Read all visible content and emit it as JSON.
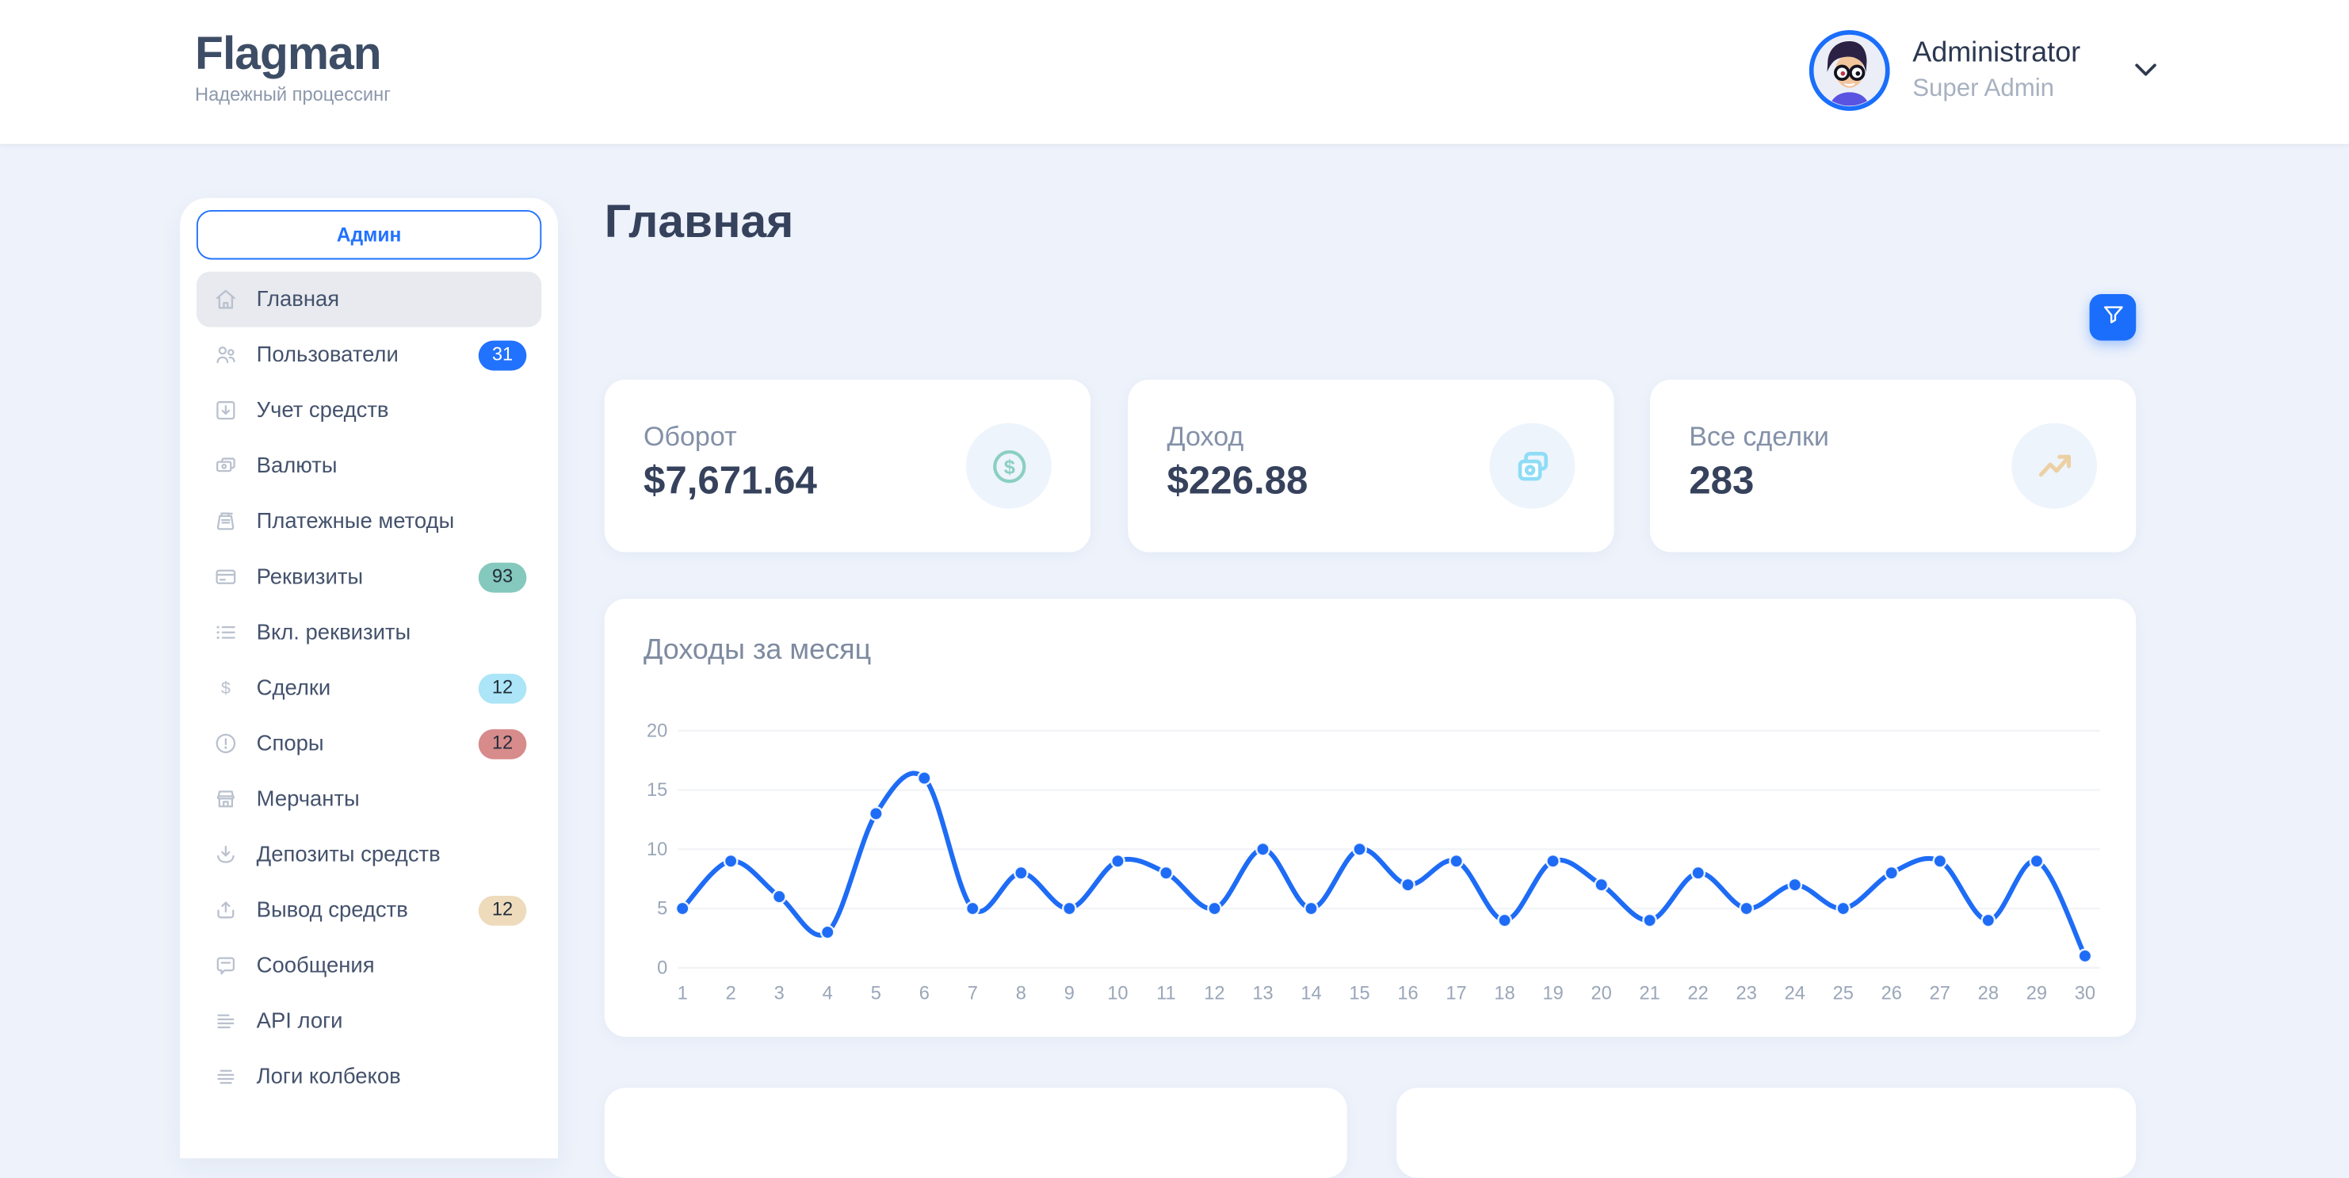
{
  "header": {
    "brand": "Flagman",
    "tagline": "Надежный процессинг",
    "user_name": "Administrator",
    "user_role": "Super Admin"
  },
  "sidebar": {
    "section_button": "Админ",
    "items": [
      {
        "label": "Главная",
        "icon": "home-icon",
        "active": true
      },
      {
        "label": "Пользователи",
        "icon": "users-icon",
        "badge": {
          "text": "31",
          "style": "blue"
        }
      },
      {
        "label": "Учет средств",
        "icon": "funds-account-icon"
      },
      {
        "label": "Валюты",
        "icon": "currency-icon"
      },
      {
        "label": "Платежные методы",
        "icon": "payment-methods-icon"
      },
      {
        "label": "Реквизиты",
        "icon": "requisites-icon",
        "badge": {
          "text": "93",
          "style": "teal"
        }
      },
      {
        "label": "Вкл. реквизиты",
        "icon": "enabled-requisites-icon"
      },
      {
        "label": "Сделки",
        "icon": "deals-icon",
        "badge": {
          "text": "12",
          "style": "cyan"
        }
      },
      {
        "label": "Споры",
        "icon": "disputes-icon",
        "badge": {
          "text": "12",
          "style": "red"
        }
      },
      {
        "label": "Мерчанты",
        "icon": "merchants-icon"
      },
      {
        "label": "Депозиты средств",
        "icon": "deposits-icon"
      },
      {
        "label": "Вывод средств",
        "icon": "withdrawals-icon",
        "badge": {
          "text": "12",
          "style": "beige"
        }
      },
      {
        "label": "Сообщения",
        "icon": "messages-icon"
      },
      {
        "label": "API логи",
        "icon": "api-logs-icon"
      },
      {
        "label": "Логи колбеков",
        "icon": "callback-logs-icon"
      }
    ]
  },
  "main": {
    "page_title": "Главная",
    "stats": [
      {
        "label": "Оборот",
        "value": "$7,671.64",
        "icon": "dollar-coin-icon"
      },
      {
        "label": "Доход",
        "value": "$226.88",
        "icon": "cash-icon"
      },
      {
        "label": "Все сделки",
        "value": "283",
        "icon": "trend-up-icon"
      }
    ]
  },
  "chart_data": {
    "type": "line",
    "title": "Доходы за месяц",
    "x": [
      1,
      2,
      3,
      4,
      5,
      6,
      7,
      8,
      9,
      10,
      11,
      12,
      13,
      14,
      15,
      16,
      17,
      18,
      19,
      20,
      21,
      22,
      23,
      24,
      25,
      26,
      27,
      28,
      29,
      30
    ],
    "values": [
      5,
      9,
      6,
      3,
      13,
      16,
      5,
      8,
      5,
      9,
      8,
      5,
      10,
      5,
      10,
      7,
      9,
      4,
      9,
      7,
      4,
      8,
      5,
      7,
      5,
      8,
      9,
      4,
      9,
      1
    ],
    "y_ticks": [
      0,
      5,
      10,
      15,
      20
    ],
    "ylim": [
      0,
      20
    ],
    "xlim": [
      1,
      30
    ],
    "grid": true,
    "legend": "none",
    "line_color": "#1e6cf5"
  },
  "colors": {
    "primary_blue": "#2172fe",
    "filter_button": "#1b6efb",
    "background": "#edf2fb",
    "badge_teal": "#85c8bd",
    "badge_cyan": "#abe5f7",
    "badge_red": "#d78b8b",
    "badge_beige": "#eedbbc",
    "chart_line": "#1e6cf5"
  }
}
